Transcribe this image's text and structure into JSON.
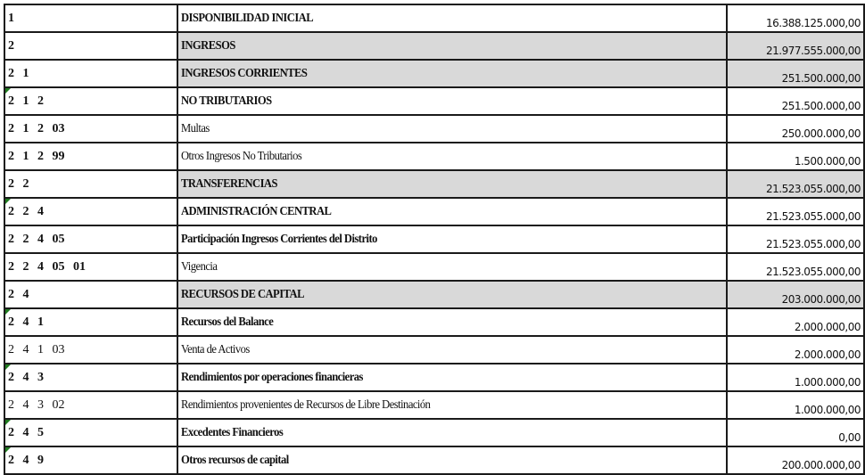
{
  "rows": [
    {
      "code": "1",
      "name": "DISPONIBILIDAD INICIAL",
      "amount": "16.388.125.000,00",
      "shaded": false,
      "bold": true,
      "marker": false
    },
    {
      "code": "2",
      "name": "INGRESOS",
      "amount": "21.977.555.000,00",
      "shaded": true,
      "bold": true,
      "marker": false
    },
    {
      "code": "2 1",
      "name": "INGRESOS CORRIENTES",
      "amount": "251.500.000,00",
      "shaded": true,
      "bold": true,
      "marker": false
    },
    {
      "code": "2 1 2",
      "name": "NO TRIBUTARIOS",
      "amount": "251.500.000,00",
      "shaded": false,
      "bold": true,
      "marker": true
    },
    {
      "code": "2 1 2 03",
      "name": "Multas",
      "amount": "250.000.000,00",
      "shaded": false,
      "bold": false,
      "marker": false
    },
    {
      "code": "2 1 2 99",
      "name": "Otros Ingresos No Tributarios",
      "amount": "1.500.000,00",
      "shaded": false,
      "bold": false,
      "marker": false
    },
    {
      "code": "2 2",
      "name": "TRANSFERENCIAS",
      "amount": "21.523.055.000,00",
      "shaded": true,
      "bold": true,
      "marker": false
    },
    {
      "code": "2 2 4",
      "name": "ADMINISTRACIÓN CENTRAL",
      "amount": "21.523.055.000,00",
      "shaded": false,
      "bold": true,
      "marker": true
    },
    {
      "code": "2 2 4 05",
      "name": "Participación Ingresos Corrientes del Distrito",
      "amount": "21.523.055.000,00",
      "shaded": false,
      "bold": true,
      "marker": false
    },
    {
      "code": "2 2 4 05 01",
      "name": "Vigencia",
      "amount": "21.523.055.000,00",
      "shaded": false,
      "bold": false,
      "marker": false
    },
    {
      "code": "2 4",
      "name": "RECURSOS DE CAPITAL",
      "amount": "203.000.000,00",
      "shaded": true,
      "bold": true,
      "marker": false
    },
    {
      "code": "2 4 1",
      "name": "Recursos del Balance",
      "amount": "2.000.000,00",
      "shaded": false,
      "bold": true,
      "marker": true
    },
    {
      "code": "2 4 1 03",
      "name": "Venta de Activos",
      "amount": "2.000.000,00",
      "shaded": false,
      "bold": false,
      "marker": false
    },
    {
      "code": "2 4 3",
      "name": "Rendimientos por operaciones financieras",
      "amount": "1.000.000,00",
      "shaded": false,
      "bold": true,
      "marker": true
    },
    {
      "code": "2 4 3 02",
      "name": "Rendimientos provenientes de Recursos de Libre Destinación",
      "amount": "1.000.000,00",
      "shaded": false,
      "bold": false,
      "marker": false
    },
    {
      "code": "2 4 5",
      "name": "Excedentes Financieros",
      "amount": "0,00",
      "shaded": false,
      "bold": true,
      "marker": true
    },
    {
      "code": "2 4 9",
      "name": "Otros recursos de capital",
      "amount": "200.000.000,00",
      "shaded": false,
      "bold": true,
      "marker": true
    }
  ],
  "colors": {
    "shade": "#d9d9d9",
    "marker": "#1f7a1f",
    "border": "#1a1a1a"
  }
}
